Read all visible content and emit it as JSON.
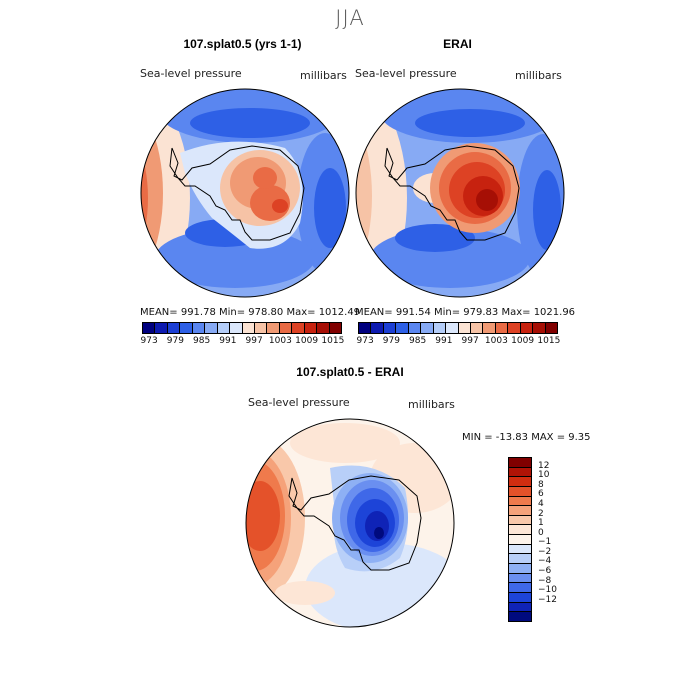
{
  "season": "JJA",
  "panels": {
    "model": {
      "title": "107.splat0.5 (yrs 1-1)",
      "variable": "Sea-level pressure",
      "units": "millibars",
      "stats": "MEAN= 991.78   Min= 978.80   Max= 1012.49"
    },
    "obs": {
      "title": "ERAI",
      "variable": "Sea-level pressure",
      "units": "millibars",
      "stats": "MEAN= 991.54   Min= 979.83   Max= 1021.96"
    },
    "diff": {
      "title": "107.splat0.5 - ERAI",
      "variable": "Sea-level pressure",
      "units": "millibars",
      "stats": "MIN = -13.83  MAX =    9.35"
    }
  },
  "colorbar_top": {
    "colors": [
      "#00007f",
      "#0d1ab0",
      "#1c3fd4",
      "#2e60e6",
      "#5a86f0",
      "#87aaf4",
      "#b4cdf8",
      "#dbe7fb",
      "#fbe3d3",
      "#f6c3a6",
      "#f09a74",
      "#e96b45",
      "#dd4224",
      "#c7220f",
      "#a60f05",
      "#800000"
    ],
    "labels": [
      "973",
      "979",
      "985",
      "991",
      "997",
      "1003",
      "1009",
      "1015"
    ]
  },
  "colorbar_diff": {
    "colors": [
      "#800000",
      "#b01306",
      "#d12d10",
      "#e4522a",
      "#ef7a4c",
      "#f5a27a",
      "#f9c8aa",
      "#fde6d6",
      "#fdf3ea",
      "#dbe7fb",
      "#b8cff8",
      "#8eb0f4",
      "#6a8ff0",
      "#3f68e8",
      "#1d44d8",
      "#0f23b6",
      "#000a7e"
    ],
    "labels": [
      "12",
      "10",
      "8",
      "6",
      "4",
      "2",
      "1",
      "0",
      "−1",
      "−2",
      "−4",
      "−6",
      "−8",
      "−10",
      "−12"
    ]
  }
}
